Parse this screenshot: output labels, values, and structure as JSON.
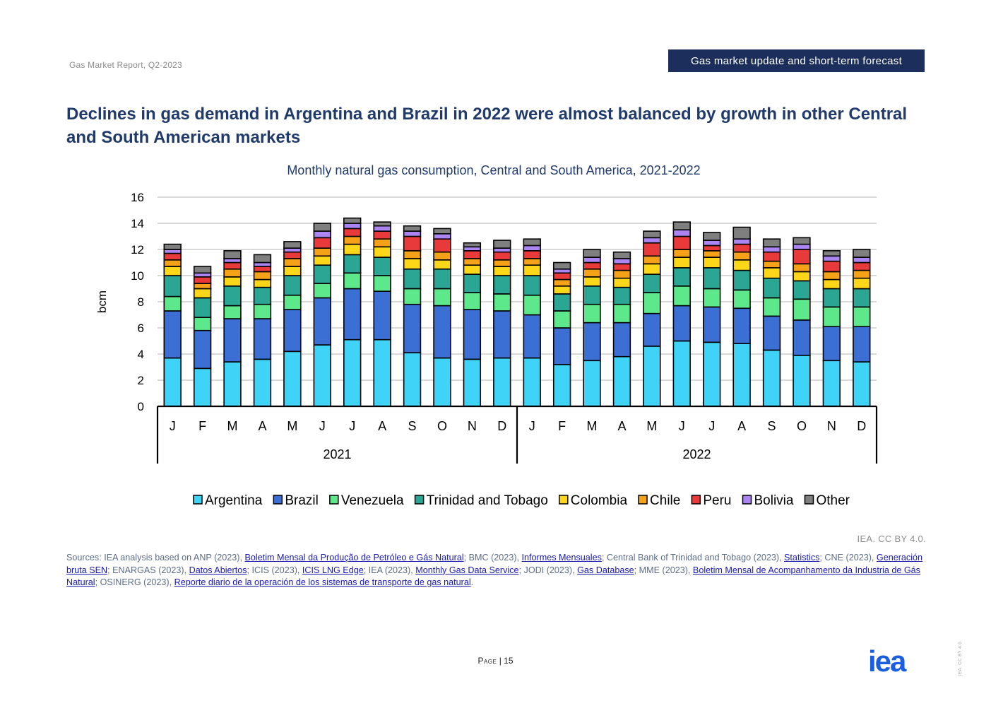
{
  "header": {
    "report_name": "Gas Market Report, Q2-2023",
    "section": "Gas market update and short-term forecast"
  },
  "headline": "Declines in gas demand in Argentina and Brazil in 2022 were almost balanced by growth in other Central and South American markets",
  "chart_data": {
    "type": "bar",
    "stacked": true,
    "title": "Monthly natural gas consumption, Central and South America, 2021-2022",
    "ylabel": "bcm",
    "xlabel": "",
    "ylim": [
      0,
      16
    ],
    "yticks": [
      0,
      2,
      4,
      6,
      8,
      10,
      12,
      14,
      16
    ],
    "grid": true,
    "legend_position": "bottom",
    "categories": [
      "J",
      "F",
      "M",
      "A",
      "M",
      "J",
      "J",
      "A",
      "S",
      "O",
      "N",
      "D",
      "J",
      "F",
      "M",
      "A",
      "M",
      "J",
      "J",
      "A",
      "S",
      "O",
      "N",
      "D"
    ],
    "groups": [
      {
        "label": "2021",
        "count": 12
      },
      {
        "label": "2022",
        "count": 12
      }
    ],
    "series": [
      {
        "name": "Argentina",
        "color": "#3fd3f7",
        "values": [
          3.7,
          2.9,
          3.4,
          3.6,
          4.2,
          4.7,
          5.1,
          5.1,
          4.1,
          3.7,
          3.6,
          3.7,
          3.7,
          3.2,
          3.5,
          3.8,
          4.6,
          5.0,
          4.9,
          4.8,
          4.3,
          3.9,
          3.5,
          3.4
        ]
      },
      {
        "name": "Brazil",
        "color": "#3b6fd4",
        "values": [
          3.6,
          2.9,
          3.3,
          3.1,
          3.2,
          3.6,
          3.9,
          3.7,
          3.7,
          4.0,
          3.8,
          3.6,
          3.3,
          2.8,
          2.9,
          2.6,
          2.5,
          2.7,
          2.7,
          2.7,
          2.6,
          2.7,
          2.6,
          2.7
        ]
      },
      {
        "name": "Venezuela",
        "color": "#5ee88c",
        "values": [
          1.1,
          1.0,
          1.0,
          1.1,
          1.1,
          1.1,
          1.2,
          1.2,
          1.2,
          1.3,
          1.3,
          1.3,
          1.5,
          1.3,
          1.4,
          1.4,
          1.6,
          1.5,
          1.4,
          1.4,
          1.4,
          1.6,
          1.5,
          1.5
        ]
      },
      {
        "name": "Trinidad and Tobago",
        "color": "#2ba594",
        "values": [
          1.6,
          1.5,
          1.5,
          1.3,
          1.5,
          1.4,
          1.4,
          1.4,
          1.5,
          1.5,
          1.4,
          1.4,
          1.5,
          1.3,
          1.4,
          1.3,
          1.4,
          1.4,
          1.6,
          1.5,
          1.5,
          1.4,
          1.4,
          1.4
        ]
      },
      {
        "name": "Colombia",
        "color": "#fcd619",
        "values": [
          0.7,
          0.7,
          0.7,
          0.6,
          0.7,
          0.7,
          0.8,
          0.8,
          0.8,
          0.7,
          0.7,
          0.7,
          0.8,
          0.6,
          0.7,
          0.7,
          0.8,
          0.8,
          0.8,
          0.8,
          0.8,
          0.7,
          0.7,
          0.8
        ]
      },
      {
        "name": "Chile",
        "color": "#f5a219",
        "values": [
          0.5,
          0.4,
          0.6,
          0.6,
          0.6,
          0.6,
          0.6,
          0.6,
          0.6,
          0.6,
          0.5,
          0.5,
          0.5,
          0.5,
          0.6,
          0.6,
          0.6,
          0.6,
          0.5,
          0.6,
          0.5,
          0.6,
          0.6,
          0.6
        ]
      },
      {
        "name": "Peru",
        "color": "#e83a3a",
        "values": [
          0.5,
          0.5,
          0.5,
          0.4,
          0.5,
          0.8,
          0.6,
          0.6,
          1.1,
          1.0,
          0.6,
          0.6,
          0.6,
          0.5,
          0.5,
          0.5,
          1.0,
          1.0,
          0.4,
          0.6,
          0.7,
          1.1,
          0.8,
          0.6
        ]
      },
      {
        "name": "Bolivia",
        "color": "#ab85f2",
        "values": [
          0.3,
          0.3,
          0.3,
          0.3,
          0.3,
          0.5,
          0.4,
          0.4,
          0.4,
          0.4,
          0.3,
          0.3,
          0.4,
          0.3,
          0.4,
          0.4,
          0.4,
          0.5,
          0.4,
          0.4,
          0.4,
          0.4,
          0.4,
          0.4
        ]
      },
      {
        "name": "Other",
        "color": "#7f7f7f",
        "values": [
          0.4,
          0.5,
          0.6,
          0.6,
          0.5,
          0.6,
          0.4,
          0.3,
          0.4,
          0.4,
          0.3,
          0.6,
          0.5,
          0.5,
          0.6,
          0.5,
          0.5,
          0.6,
          0.6,
          0.9,
          0.6,
          0.5,
          0.4,
          0.6
        ]
      }
    ]
  },
  "credit": "IEA. CC BY 4.0.",
  "sources": [
    {
      "text": "Sources: IEA analysis based on ANP (2023), "
    },
    {
      "text": "Boletim Mensal da Produção de Petróleo e Gás Natural",
      "link": true
    },
    {
      "text": "; BMC (2023), "
    },
    {
      "text": "Informes Mensuales",
      "link": true
    },
    {
      "text": "; Central Bank of Trinidad and Tobago (2023), "
    },
    {
      "text": "Statistics",
      "link": true
    },
    {
      "text": "; CNE (2023), "
    },
    {
      "text": "Generación bruta SEN",
      "link": true
    },
    {
      "text": "; ENARGAS (2023), "
    },
    {
      "text": "Datos Abiertos",
      "link": true
    },
    {
      "text": "; ICIS (2023), "
    },
    {
      "text": "ICIS LNG Edge",
      "link": true
    },
    {
      "text": "; IEA (2023), "
    },
    {
      "text": "Monthly Gas Data Service",
      "link": true
    },
    {
      "text": "; JODI (2023), "
    },
    {
      "text": "Gas Database",
      "link": true
    },
    {
      "text": "; MME (2023), "
    },
    {
      "text": "Boletim Mensal de Acompanhamento da Industria de Gás Natural",
      "link": true
    },
    {
      "text": "; OSINERG (2023), "
    },
    {
      "text": "Reporte diario de la operación de los sistemas de transporte de gas natural",
      "link": true
    },
    {
      "text": "."
    }
  ],
  "footer": {
    "page_label": "Page",
    "page_number": "15",
    "logo_text": "iea",
    "vertical_credit": "IEA. CC BY 4.0."
  }
}
